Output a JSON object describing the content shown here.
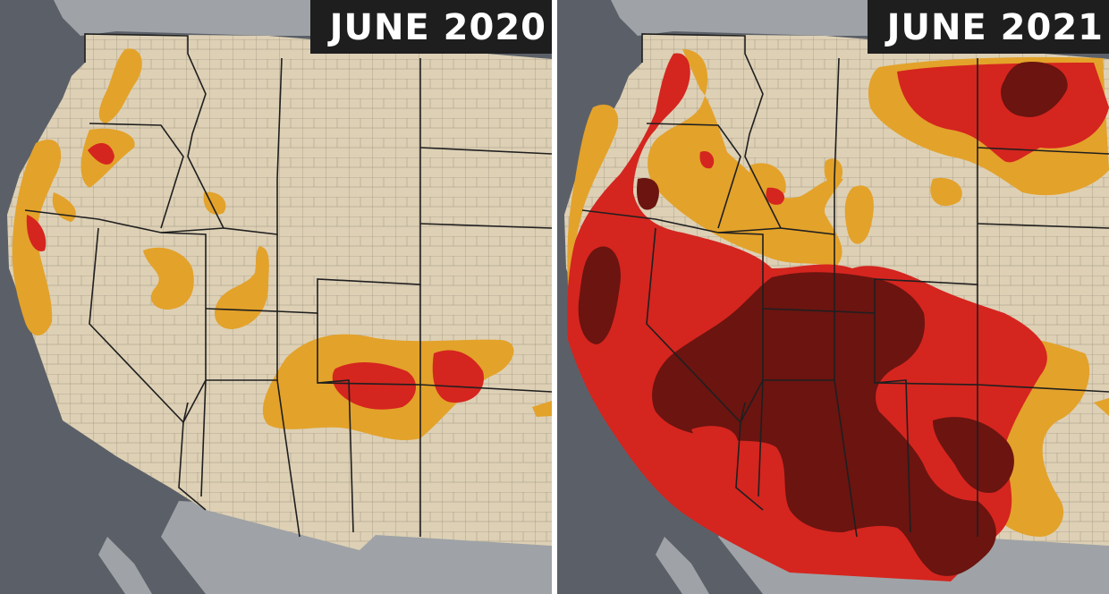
{
  "panels": [
    {
      "label": "JUNE 2020"
    },
    {
      "label": "JUNE 2021"
    }
  ],
  "colors": {
    "ocean": "#5b6068",
    "land_relief": "#9fa3a7",
    "land_us": "#ddd0b5",
    "moderate": "#e3a22a",
    "severe": "#d5251f",
    "extreme": "#6b1410",
    "state_line": "#1f1f1f",
    "county_line": "#7c7266",
    "label_bg": "#1e1e1e",
    "label_text": "#ffffff"
  }
}
